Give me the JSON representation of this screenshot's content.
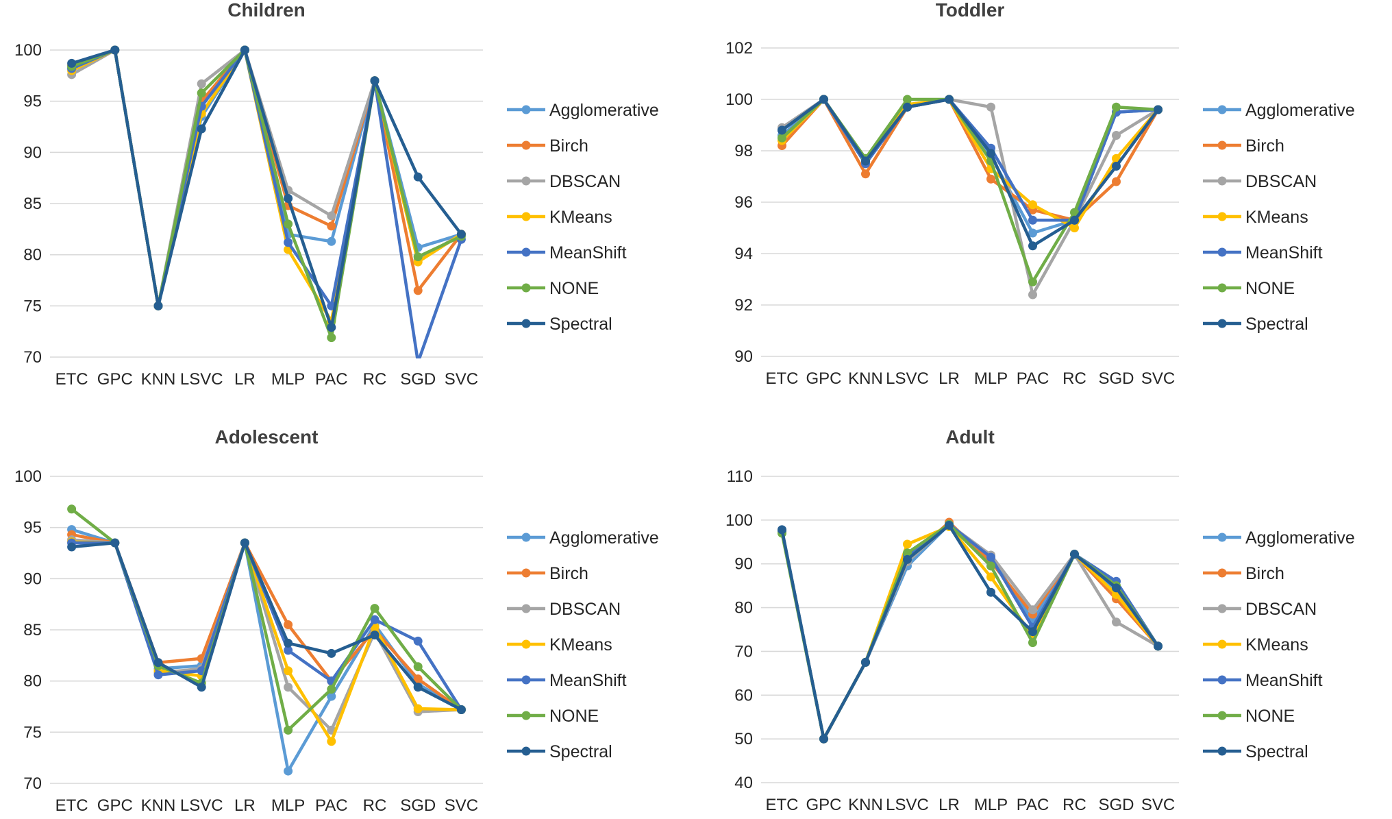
{
  "chart_data": [
    {
      "type": "line",
      "title": "Children",
      "categories": [
        "ETC",
        "GPC",
        "KNN",
        "LSVC",
        "LR",
        "MLP",
        "PAC",
        "RC",
        "SGD",
        "SVC"
      ],
      "ylim": [
        70,
        100
      ],
      "yticks": [
        70,
        75,
        80,
        85,
        90,
        95,
        100
      ],
      "legend_position": "right",
      "series": [
        {
          "name": "Agglomerative",
          "color": "#5B9BD5",
          "values": [
            98.2,
            100,
            75,
            93.5,
            100,
            82,
            81.3,
            97,
            80.7,
            82
          ]
        },
        {
          "name": "Birch",
          "color": "#ED7D31",
          "values": [
            98.5,
            100,
            75,
            95,
            100,
            84.8,
            82.8,
            97,
            76.5,
            82
          ]
        },
        {
          "name": "DBSCAN",
          "color": "#A5A5A5",
          "values": [
            97.6,
            100,
            75,
            96.7,
            100,
            86.3,
            83.8,
            97,
            79.5,
            82
          ]
        },
        {
          "name": "KMeans",
          "color": "#FFC000",
          "values": [
            98,
            100,
            75,
            93.8,
            100,
            80.5,
            73.5,
            97,
            79.3,
            82
          ]
        },
        {
          "name": "MeanShift",
          "color": "#4472C4",
          "values": [
            98.2,
            100,
            75,
            94.5,
            100,
            81.2,
            75,
            97,
            69.5,
            81.5
          ]
        },
        {
          "name": "NONE",
          "color": "#70AD47",
          "values": [
            98.4,
            100,
            75,
            95.8,
            100,
            83,
            71.9,
            97,
            79.8,
            81.8
          ]
        },
        {
          "name": "Spectral",
          "color": "#255E91",
          "values": [
            98.7,
            100,
            75,
            92.3,
            100,
            85.5,
            72.9,
            97,
            87.6,
            82
          ]
        }
      ]
    },
    {
      "type": "line",
      "title": "Toddler",
      "categories": [
        "ETC",
        "GPC",
        "KNN",
        "LSVC",
        "LR",
        "MLP",
        "PAC",
        "RC",
        "SGD",
        "SVC"
      ],
      "ylim": [
        90,
        102
      ],
      "yticks": [
        90,
        92,
        94,
        96,
        98,
        100,
        102
      ],
      "legend_position": "right",
      "series": [
        {
          "name": "Agglomerative",
          "color": "#5B9BD5",
          "values": [
            98.6,
            100,
            97.5,
            99.7,
            100,
            97.8,
            94.8,
            95.3,
            99.5,
            99.6
          ]
        },
        {
          "name": "Birch",
          "color": "#ED7D31",
          "values": [
            98.2,
            100,
            97.1,
            99.7,
            100,
            96.9,
            95.7,
            95.3,
            96.8,
            99.6
          ]
        },
        {
          "name": "DBSCAN",
          "color": "#A5A5A5",
          "values": [
            98.9,
            100,
            97.5,
            99.8,
            100,
            99.7,
            92.4,
            95.3,
            98.6,
            99.6
          ]
        },
        {
          "name": "KMeans",
          "color": "#FFC000",
          "values": [
            98.4,
            100,
            97.6,
            99.8,
            100,
            97.3,
            95.9,
            95,
            97.7,
            99.6
          ]
        },
        {
          "name": "MeanShift",
          "color": "#4472C4",
          "values": [
            98.8,
            100,
            97.5,
            99.7,
            100,
            98.1,
            95.3,
            95.3,
            99.5,
            99.6
          ]
        },
        {
          "name": "NONE",
          "color": "#70AD47",
          "values": [
            98.5,
            100,
            97.7,
            100,
            100,
            97.6,
            92.9,
            95.6,
            99.7,
            99.6
          ]
        },
        {
          "name": "Spectral",
          "color": "#255E91",
          "values": [
            98.8,
            100,
            97.6,
            99.7,
            100,
            97.9,
            94.3,
            95.3,
            97.4,
            99.6
          ]
        }
      ]
    },
    {
      "type": "line",
      "title": "Adolescent",
      "categories": [
        "ETC",
        "GPC",
        "KNN",
        "LSVC",
        "LR",
        "MLP",
        "PAC",
        "RC",
        "SGD",
        "SVC"
      ],
      "ylim": [
        70,
        100
      ],
      "yticks": [
        70,
        75,
        80,
        85,
        90,
        95,
        100
      ],
      "legend_position": "right",
      "series": [
        {
          "name": "Agglomerative",
          "color": "#5B9BD5",
          "values": [
            94.8,
            93.5,
            81.2,
            81.5,
            93.5,
            71.2,
            78.5,
            85.5,
            79.7,
            77.2
          ]
        },
        {
          "name": "Birch",
          "color": "#ED7D31",
          "values": [
            94.3,
            93.5,
            81.8,
            82.2,
            93.5,
            85.5,
            80,
            85,
            80.2,
            77.2
          ]
        },
        {
          "name": "DBSCAN",
          "color": "#A5A5A5",
          "values": [
            93.8,
            93.5,
            80.8,
            81.2,
            93.5,
            79.4,
            75.2,
            84.8,
            77,
            77.2
          ]
        },
        {
          "name": "KMeans",
          "color": "#FFC000",
          "values": [
            93.6,
            93.5,
            81,
            80.5,
            93.5,
            81,
            74.1,
            85.3,
            77.3,
            77.2
          ]
        },
        {
          "name": "MeanShift",
          "color": "#4472C4",
          "values": [
            93.5,
            93.5,
            80.6,
            81,
            93.5,
            83,
            80,
            86,
            83.9,
            77.2
          ]
        },
        {
          "name": "NONE",
          "color": "#70AD47",
          "values": [
            96.8,
            93.5,
            81.5,
            79.8,
            93.5,
            75.2,
            79.2,
            87.1,
            81.4,
            77.2
          ]
        },
        {
          "name": "Spectral",
          "color": "#255E91",
          "values": [
            93.1,
            93.5,
            81.8,
            79.4,
            93.5,
            83.7,
            82.7,
            84.5,
            79.4,
            77.2
          ]
        }
      ]
    },
    {
      "type": "line",
      "title": "Adult",
      "categories": [
        "ETC",
        "GPC",
        "KNN",
        "LSVC",
        "LR",
        "MLP",
        "PAC",
        "RC",
        "SGD",
        "SVC"
      ],
      "ylim": [
        40,
        110
      ],
      "yticks": [
        40,
        50,
        60,
        70,
        80,
        90,
        100,
        110
      ],
      "legend_position": "right",
      "series": [
        {
          "name": "Agglomerative",
          "color": "#5B9BD5",
          "values": [
            97.5,
            50,
            67.5,
            89.5,
            99,
            91.5,
            77,
            92.2,
            83.5,
            71.2
          ]
        },
        {
          "name": "Birch",
          "color": "#ED7D31",
          "values": [
            97.5,
            50,
            67.5,
            91,
            99.5,
            90.5,
            78.5,
            92.2,
            82,
            71.2
          ]
        },
        {
          "name": "DBSCAN",
          "color": "#A5A5A5",
          "values": [
            97.5,
            50,
            67.5,
            90.5,
            99,
            92,
            79.5,
            92.2,
            76.7,
            71.2
          ]
        },
        {
          "name": "KMeans",
          "color": "#FFC000",
          "values": [
            97.5,
            50,
            67.5,
            94.5,
            98.5,
            87,
            73.5,
            92.2,
            83,
            71.2
          ]
        },
        {
          "name": "MeanShift",
          "color": "#4472C4",
          "values": [
            97.5,
            50,
            67.5,
            92,
            99,
            91.5,
            75.5,
            92.2,
            86,
            71.2
          ]
        },
        {
          "name": "NONE",
          "color": "#70AD47",
          "values": [
            97,
            50,
            67.5,
            92.5,
            99,
            89.5,
            72,
            92.2,
            85,
            71.2
          ]
        },
        {
          "name": "Spectral",
          "color": "#255E91",
          "values": [
            97.8,
            50,
            67.5,
            91,
            98.8,
            83.5,
            74.5,
            92.2,
            84.5,
            71.2
          ]
        }
      ]
    }
  ]
}
